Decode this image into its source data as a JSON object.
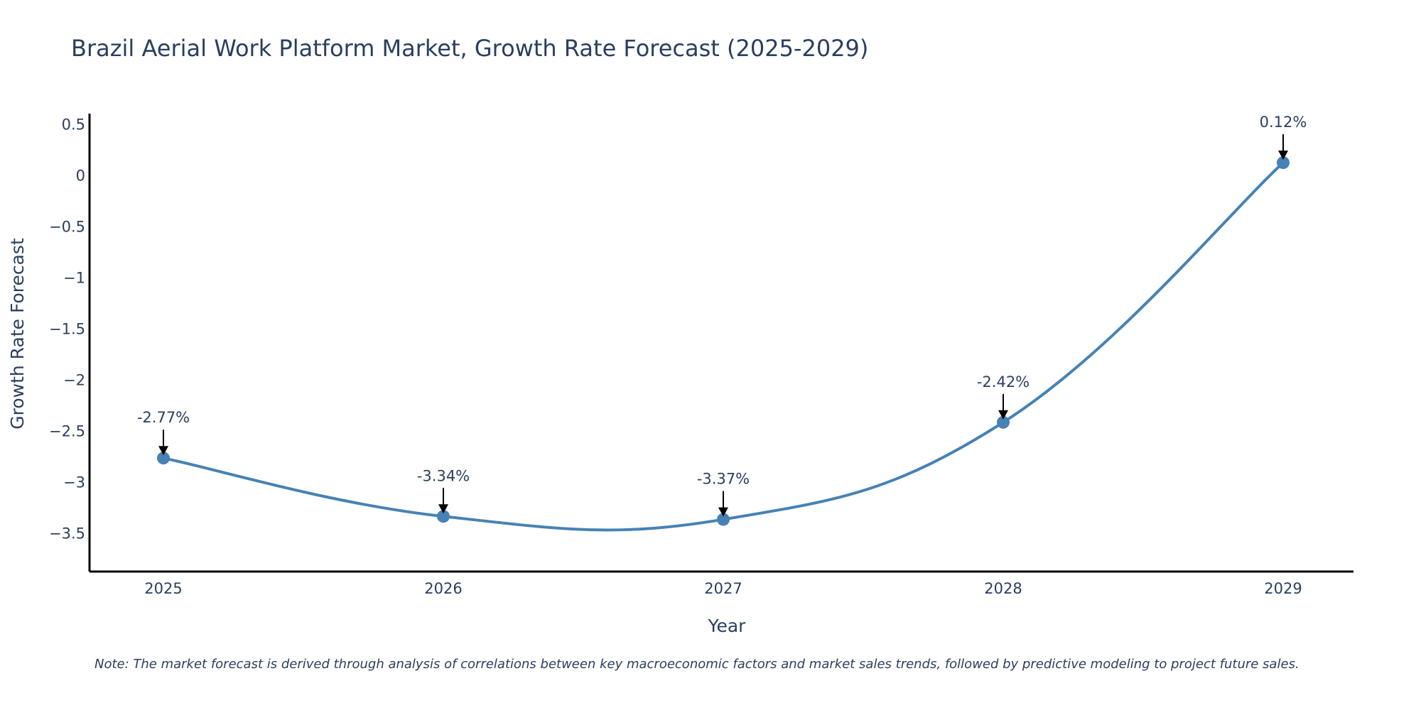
{
  "chart_data": {
    "type": "line",
    "title": "Brazil Aerial Work Platform Market, Growth Rate Forecast (2025-2029)",
    "xlabel": "Year",
    "ylabel": "Growth Rate Forecast",
    "categories": [
      "2025",
      "2026",
      "2027",
      "2028",
      "2029"
    ],
    "values": [
      -2.77,
      -3.34,
      -3.37,
      -2.42,
      0.12
    ],
    "data_labels": [
      "-2.77%",
      "-3.34%",
      "-3.37%",
      "-2.42%",
      "0.12%"
    ],
    "y_ticks": [
      0.5,
      0,
      -0.5,
      -1,
      -1.5,
      -2,
      -2.5,
      -3,
      -3.5
    ],
    "y_tick_labels": [
      "0.5",
      "0",
      "−0.5",
      "−1",
      "−1.5",
      "−2",
      "−2.5",
      "−3",
      "−3.5"
    ],
    "ylim": [
      -3.88,
      0.6
    ],
    "grid": false,
    "line_color": "#4682b4",
    "note": "Note: The market forecast is derived through analysis of correlations between key macroeconomic factors and market sales trends, followed by predictive modeling to project future sales."
  }
}
